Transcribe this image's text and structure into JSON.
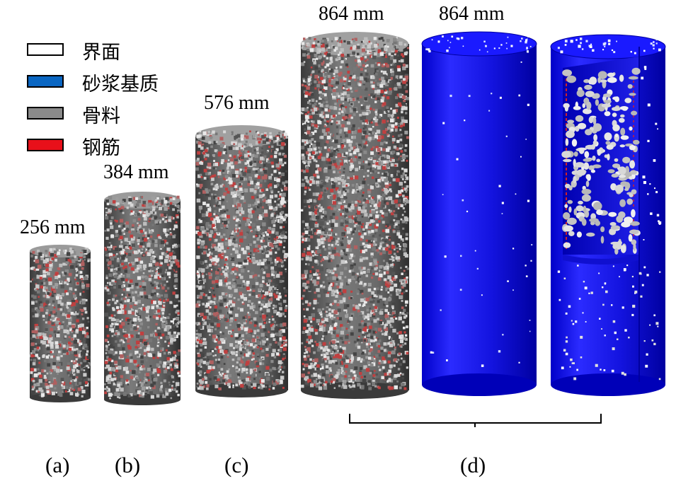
{
  "legend": {
    "items": [
      {
        "label": "界面",
        "color": "#ffffff"
      },
      {
        "label": "砂浆基质",
        "color": "#0a66c2"
      },
      {
        "label": "骨料",
        "color": "#8a8a8a"
      },
      {
        "label": "钢筋",
        "color": "#e8101a"
      }
    ]
  },
  "specimens": {
    "a": {
      "size": "256 mm"
    },
    "b": {
      "size": "384 mm"
    },
    "c": {
      "size": "576 mm"
    },
    "d_left": {
      "size": "864 mm"
    },
    "d_right": {
      "size": "864 mm"
    }
  },
  "panels": {
    "a": "(a)",
    "b": "(b)",
    "c": "(c)",
    "d": "(d)"
  },
  "colors": {
    "matrix_blue": "#1a1ae6",
    "aggregate_gray": "#8a8a8a",
    "rebar_red": "#d0202a",
    "interface_white": "#ffffff"
  }
}
